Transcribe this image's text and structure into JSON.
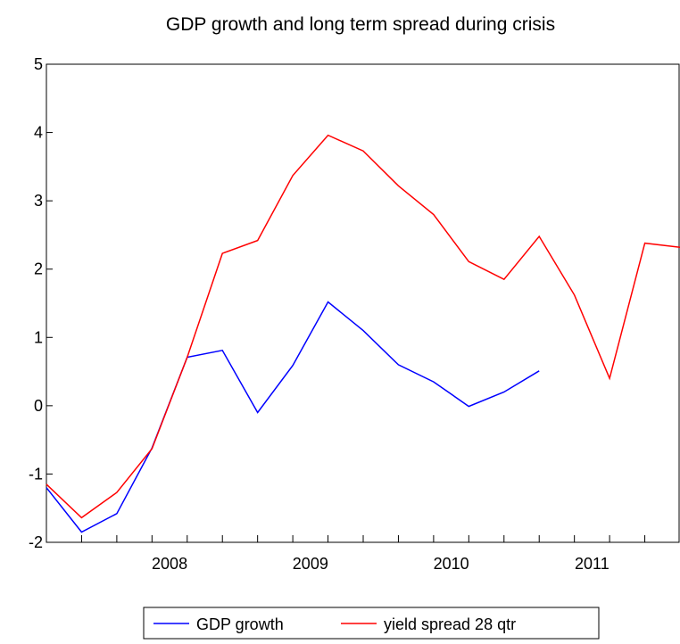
{
  "chart_data": {
    "type": "line",
    "title": "GDP growth and long term spread during crisis",
    "xlabel": "",
    "ylabel": "",
    "x": [
      "2007Q3",
      "2007Q4",
      "2008Q1",
      "2008Q2",
      "2008Q3",
      "2008Q4",
      "2009Q1",
      "2009Q2",
      "2009Q3",
      "2009Q4",
      "2010Q1",
      "2010Q2",
      "2010Q3",
      "2010Q4",
      "2011Q1",
      "2011Q2",
      "2011Q3",
      "2011Q4",
      "2012Q1"
    ],
    "x_tick_labels": [
      "2008",
      "2009",
      "2010",
      "2011"
    ],
    "y_tick_labels": [
      "5",
      "4",
      "3",
      "2",
      "1",
      "0",
      "-1",
      "-2"
    ],
    "ylim": [
      -2,
      5
    ],
    "series": [
      {
        "name": "GDP growth",
        "color": "#0000ff",
        "values": [
          -1.2,
          -1.85,
          -1.58,
          -0.62,
          0.71,
          0.81,
          -0.1,
          0.59,
          1.52,
          1.1,
          0.6,
          0.35,
          -0.01,
          0.2,
          0.51,
          null,
          null,
          null,
          null
        ]
      },
      {
        "name": "yield spread 28 qtr",
        "color": "#ff0000",
        "values": [
          -1.15,
          -1.64,
          -1.27,
          -0.63,
          0.71,
          2.23,
          2.42,
          3.37,
          3.96,
          3.73,
          3.22,
          2.8,
          2.11,
          1.85,
          2.48,
          1.62,
          0.4,
          2.38,
          2.32
        ]
      }
    ],
    "grid": false,
    "legend": "bottom-center"
  }
}
